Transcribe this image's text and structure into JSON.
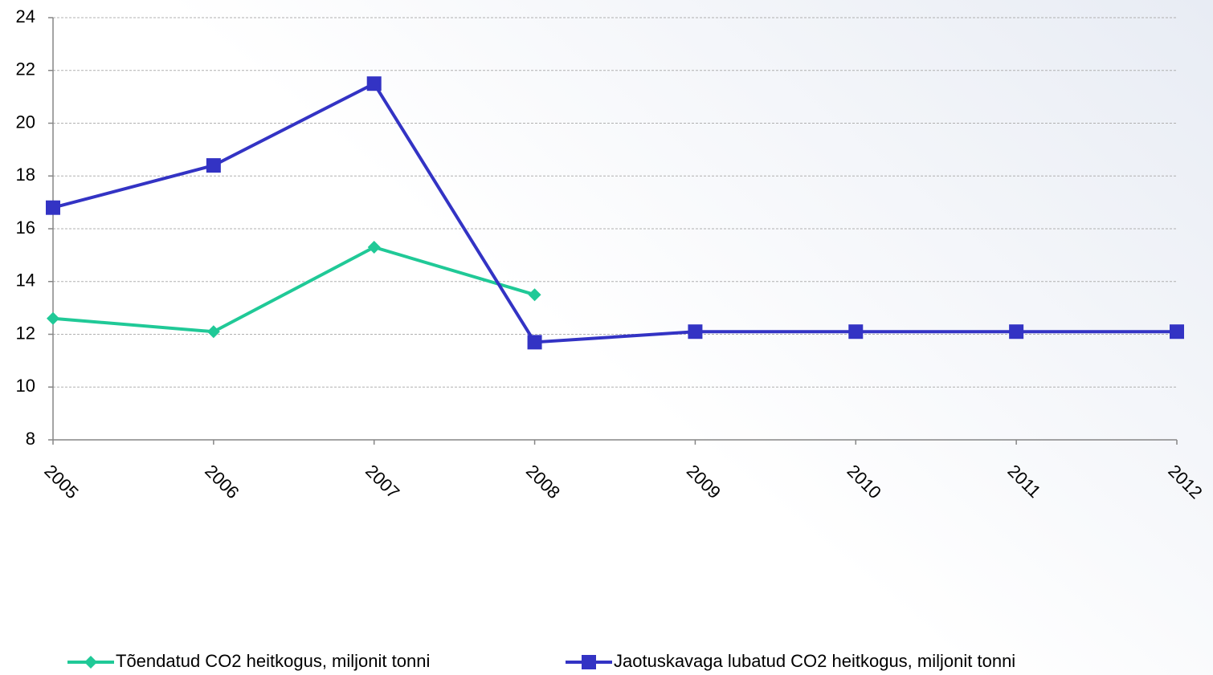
{
  "chart_data": {
    "type": "line",
    "categories": [
      "2005",
      "2006",
      "2007",
      "2008",
      "2009",
      "2010",
      "2011",
      "2012"
    ],
    "series": [
      {
        "name": "Tõendatud CO2 heitkogus, miljonit tonni",
        "color": "#20c997",
        "marker": "diamond",
        "values": [
          12.6,
          12.1,
          15.3,
          13.5,
          null,
          null,
          null,
          null
        ]
      },
      {
        "name": "Jaotuskavaga lubatud CO2 heitkogus, miljonit tonni",
        "color": "#3333c4",
        "marker": "square",
        "values": [
          16.8,
          18.4,
          21.5,
          11.7,
          12.1,
          12.1,
          12.1,
          12.1
        ]
      }
    ],
    "ylim": [
      8,
      24
    ],
    "yticks": [
      8,
      10,
      12,
      14,
      16,
      18,
      20,
      22,
      24
    ],
    "grid": true,
    "legend": "bottom"
  }
}
